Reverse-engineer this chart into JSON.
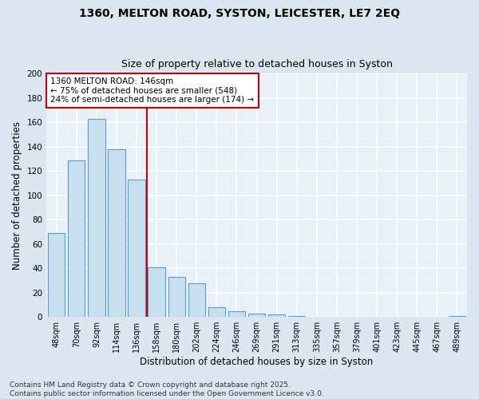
{
  "title_line1": "1360, MELTON ROAD, SYSTON, LEICESTER, LE7 2EQ",
  "title_line2": "Size of property relative to detached houses in Syston",
  "xlabel": "Distribution of detached houses by size in Syston",
  "ylabel": "Number of detached properties",
  "categories": [
    "48sqm",
    "70sqm",
    "92sqm",
    "114sqm",
    "136sqm",
    "158sqm",
    "180sqm",
    "202sqm",
    "224sqm",
    "246sqm",
    "269sqm",
    "291sqm",
    "313sqm",
    "335sqm",
    "357sqm",
    "379sqm",
    "401sqm",
    "423sqm",
    "445sqm",
    "467sqm",
    "489sqm"
  ],
  "values": [
    69,
    129,
    163,
    138,
    113,
    41,
    33,
    28,
    8,
    5,
    3,
    2,
    1,
    0,
    0,
    0,
    0,
    0,
    0,
    0,
    1
  ],
  "bar_color": "#c8dff0",
  "bar_edge_color": "#5b9bd5",
  "background_color": "#dce6f0",
  "plot_bg_color": "#e8f0f8",
  "grid_color": "#ffffff",
  "vline_x": 4.5,
  "vline_color": "#cc0000",
  "annotation_text": "1360 MELTON ROAD: 146sqm\n← 75% of detached houses are smaller (548)\n24% of semi-detached houses are larger (174) →",
  "annotation_box_color": "#cc0000",
  "ylim": [
    0,
    200
  ],
  "yticks": [
    0,
    20,
    40,
    60,
    80,
    100,
    120,
    140,
    160,
    180,
    200
  ],
  "footer": "Contains HM Land Registry data © Crown copyright and database right 2025.\nContains public sector information licensed under the Open Government Licence v3.0.",
  "title_fontsize": 10,
  "subtitle_fontsize": 9,
  "axis_label_fontsize": 8.5,
  "tick_fontsize": 7,
  "annotation_fontsize": 7.5,
  "footer_fontsize": 6.5
}
